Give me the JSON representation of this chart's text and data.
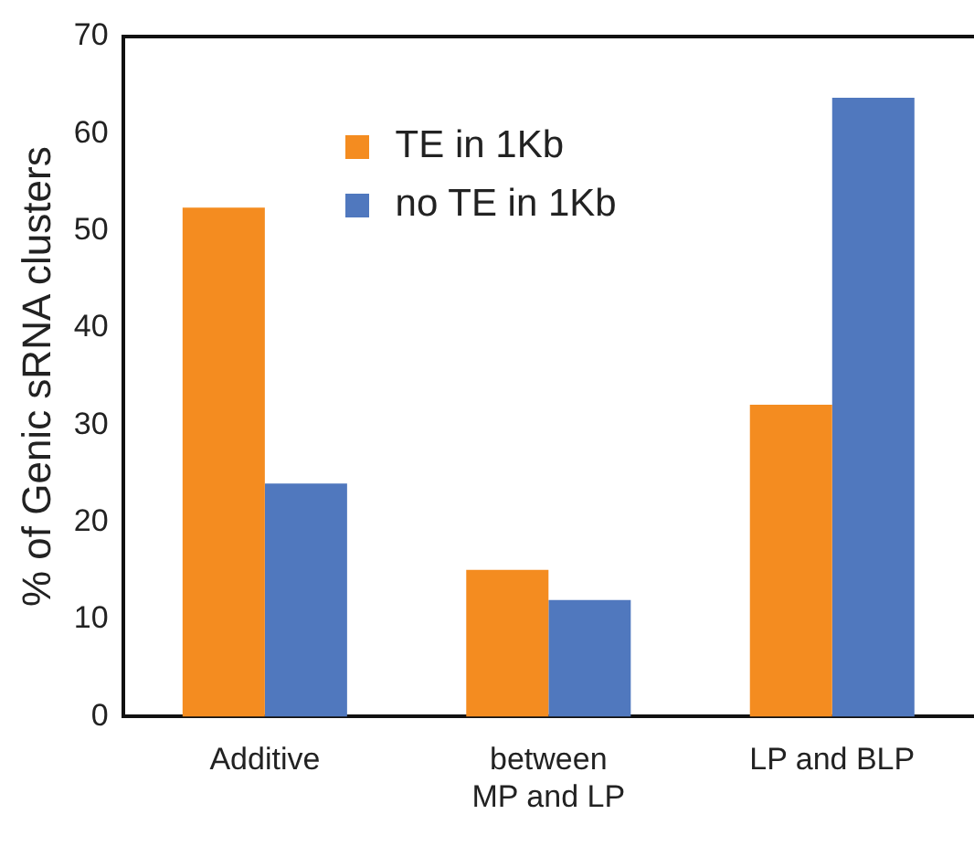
{
  "chart_data": {
    "type": "bar",
    "ylabel": "% of Genic sRNA clusters",
    "categories": [
      "Additive",
      "between\nMP and LP",
      "LP and BLP"
    ],
    "series": [
      {
        "name": "TE in 1Kb",
        "color": "#f48c20",
        "values": [
          52.4,
          15.1,
          32.1
        ]
      },
      {
        "name": "no TE in 1Kb",
        "color": "#5078be",
        "values": [
          24.0,
          12.0,
          63.7
        ]
      }
    ],
    "ylim": [
      0,
      70
    ],
    "yticks": [
      0,
      10,
      20,
      30,
      40,
      50,
      60,
      70
    ],
    "grid": false,
    "legend": "top"
  }
}
